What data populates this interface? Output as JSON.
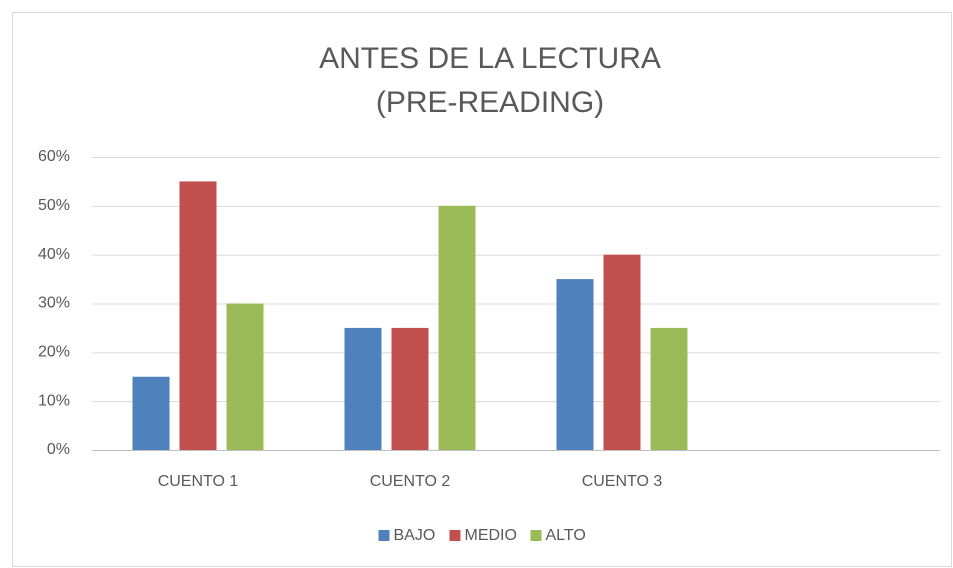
{
  "chart_data": {
    "type": "bar",
    "title": [
      "ANTES DE LA LECTURA",
      "(PRE-READING)"
    ],
    "categories": [
      "CUENTO 1",
      "CUENTO 2",
      "CUENTO 3",
      null
    ],
    "series": [
      {
        "name": "BAJO",
        "color": "#4f81bd",
        "values": [
          15,
          25,
          35,
          null
        ]
      },
      {
        "name": "MEDIO",
        "color": "#c0504d",
        "values": [
          55,
          25,
          40,
          null
        ]
      },
      {
        "name": "ALTO",
        "color": "#9bbb59",
        "values": [
          30,
          50,
          25,
          null
        ]
      }
    ],
    "ylim": [
      0,
      60
    ],
    "yticks": [
      {
        "value": 0,
        "label": "0%"
      },
      {
        "value": 10,
        "label": "10%"
      },
      {
        "value": 20,
        "label": "20%"
      },
      {
        "value": 30,
        "label": "30%"
      },
      {
        "value": 40,
        "label": "40%"
      },
      {
        "value": 50,
        "label": "50%"
      },
      {
        "value": 60,
        "label": "60%"
      }
    ],
    "grid": true,
    "legend": "bottom"
  }
}
